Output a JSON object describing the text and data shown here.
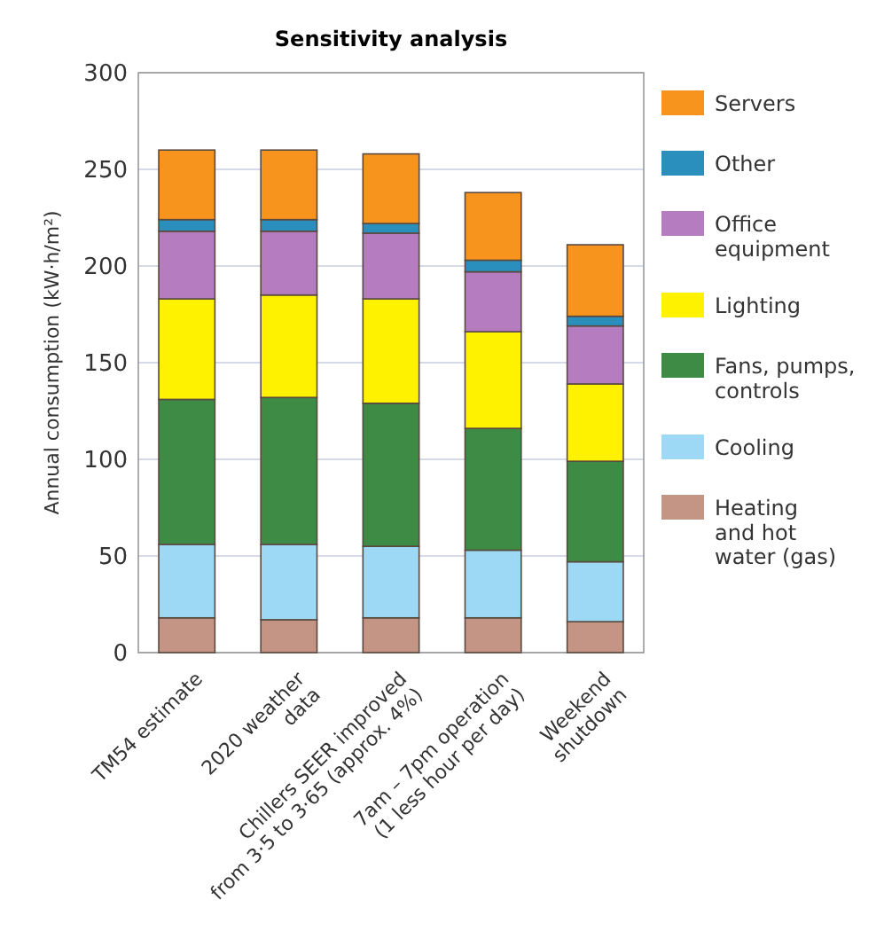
{
  "chart_data": {
    "type": "bar",
    "title": "Sensitivity analysis",
    "ylabel": "Annual consumption (kW·h/m²)",
    "categories": [
      "TM54 estimate",
      "2020 weather\ndata",
      "Chillers SEER improved\nfrom 3·5 to 3·65 (approx. 4%)",
      "7am – 7pm operation\n(1 less hour per day)",
      "Weekend\nshutdown"
    ],
    "stacked": true,
    "ylim": [
      0,
      300
    ],
    "yticks": [
      0,
      50,
      100,
      150,
      200,
      250,
      300
    ],
    "grid": "y",
    "legend": "right",
    "series": [
      {
        "name": "Heating\nand hot\nwater (gas)",
        "color": "#c49484",
        "values": [
          18,
          17,
          18,
          18,
          16
        ]
      },
      {
        "name": "Cooling",
        "color": "#9dd8f5",
        "values": [
          38,
          39,
          37,
          35,
          31
        ]
      },
      {
        "name": "Fans, pumps,\ncontrols",
        "color": "#3d8b45",
        "values": [
          75,
          76,
          74,
          63,
          52
        ]
      },
      {
        "name": "Lighting",
        "color": "#fff200",
        "values": [
          52,
          53,
          54,
          50,
          40
        ]
      },
      {
        "name": "Office\nequipment",
        "color": "#b57cc0",
        "values": [
          35,
          33,
          34,
          31,
          30
        ]
      },
      {
        "name": "Other",
        "color": "#2a8fbd",
        "values": [
          6,
          6,
          5,
          6,
          5
        ]
      },
      {
        "name": "Servers",
        "color": "#f7941d",
        "values": [
          36,
          36,
          36,
          35,
          37
        ]
      }
    ]
  }
}
